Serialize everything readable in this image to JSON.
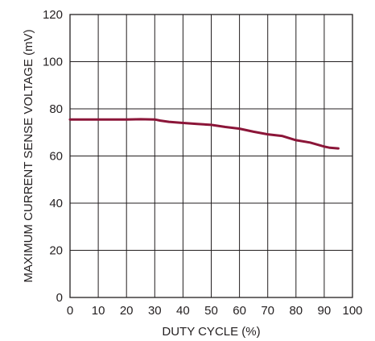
{
  "chart_data": {
    "type": "line",
    "title": "",
    "xlabel": "DUTY CYCLE (%)",
    "ylabel": "MAXIMUM CURRENT SENSE VOLTAGE (mV)",
    "xlim": [
      0,
      100
    ],
    "ylim": [
      0,
      120
    ],
    "x_ticks": [
      0,
      10,
      20,
      30,
      40,
      50,
      60,
      70,
      80,
      90,
      100
    ],
    "y_ticks": [
      0,
      20,
      40,
      60,
      80,
      100,
      120
    ],
    "grid": true,
    "legend": "none",
    "series": [
      {
        "color": "#8b1538",
        "x": [
          0,
          10,
          20,
          25,
          30,
          32,
          35,
          40,
          45,
          50,
          55,
          60,
          65,
          70,
          75,
          80,
          85,
          90,
          92,
          95
        ],
        "y": [
          75.5,
          75.5,
          75.5,
          75.6,
          75.5,
          75.0,
          74.5,
          74.0,
          73.6,
          73.2,
          72.3,
          71.6,
          70.3,
          69.2,
          68.5,
          66.7,
          65.7,
          64.0,
          63.5,
          63.2
        ]
      }
    ]
  }
}
